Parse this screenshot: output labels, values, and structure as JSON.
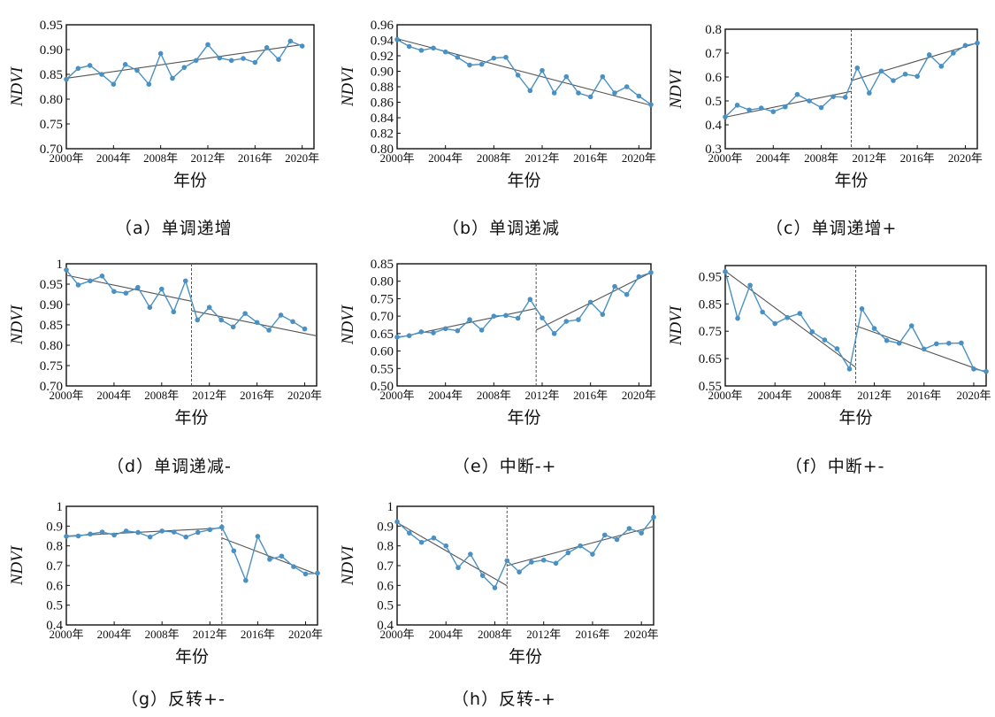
{
  "colors": {
    "series": "#4a90c2",
    "trend": "#555555",
    "axis": "#111111",
    "break": "#555555"
  },
  "chart_data": [
    {
      "type": "line",
      "caption": "（a）单调递增",
      "xlabel": "年份",
      "ylabel": "NDVI",
      "xticks": [
        "2000年",
        "2004年",
        "2008年",
        "2012年",
        "2016年",
        "2020年"
      ],
      "yticks": [
        "0.70",
        "0.75",
        "0.80",
        "0.85",
        "0.90",
        "0.95"
      ],
      "ylim": [
        0.7,
        0.95
      ],
      "series": [
        {
          "x": [
            2000,
            2001,
            2002,
            2003,
            2004,
            2005,
            2006,
            2007,
            2008,
            2009,
            2010,
            2011,
            2012,
            2013,
            2014,
            2015,
            2016,
            2017,
            2018,
            2019,
            2020
          ],
          "values": [
            0.84,
            0.862,
            0.868,
            0.85,
            0.83,
            0.87,
            0.858,
            0.83,
            0.892,
            0.842,
            0.864,
            0.878,
            0.91,
            0.883,
            0.878,
            0.882,
            0.874,
            0.904,
            0.88,
            0.917,
            0.907
          ]
        }
      ],
      "trend": [
        {
          "x": [
            2000,
            2020
          ],
          "y": [
            0.842,
            0.91
          ]
        }
      ]
    },
    {
      "type": "line",
      "caption": "（b）单调递减",
      "xlabel": "年份",
      "ylabel": "NDVI",
      "xticks": [
        "2000年",
        "2004年",
        "2008年",
        "2012年",
        "2016年",
        "2020年"
      ],
      "yticks": [
        "0.80",
        "0.82",
        "0.84",
        "0.86",
        "0.88",
        "0.90",
        "0.92",
        "0.94",
        "0.96"
      ],
      "ylim": [
        0.8,
        0.96
      ],
      "series": [
        {
          "x": [
            2000,
            2001,
            2002,
            2003,
            2004,
            2005,
            2006,
            2007,
            2008,
            2009,
            2010,
            2011,
            2012,
            2013,
            2014,
            2015,
            2016,
            2017,
            2018,
            2019,
            2020,
            2021
          ],
          "values": [
            0.941,
            0.932,
            0.927,
            0.93,
            0.925,
            0.918,
            0.908,
            0.909,
            0.917,
            0.918,
            0.895,
            0.875,
            0.901,
            0.872,
            0.893,
            0.872,
            0.867,
            0.893,
            0.872,
            0.88,
            0.868,
            0.857
          ]
        }
      ],
      "trend": [
        {
          "x": [
            2000,
            2021
          ],
          "y": [
            0.942,
            0.856
          ]
        }
      ]
    },
    {
      "type": "line",
      "caption": "（c）单调递增+",
      "xlabel": "年份",
      "ylabel": "NDVI",
      "xticks": [
        "2000年",
        "2004年",
        "2008年",
        "2012年",
        "2016年",
        "2020年"
      ],
      "yticks": [
        "0.3",
        "0.4",
        "0.5",
        "0.6",
        "0.7",
        "0.8"
      ],
      "ylim": [
        0.3,
        0.8
      ],
      "breakpoint": 2010.5,
      "series": [
        {
          "x": [
            2000,
            2001,
            2002,
            2003,
            2004,
            2005,
            2006,
            2007,
            2008,
            2009,
            2010,
            2011,
            2012,
            2013,
            2014,
            2015,
            2016,
            2017,
            2018,
            2019,
            2020,
            2021
          ],
          "values": [
            0.433,
            0.482,
            0.462,
            0.47,
            0.455,
            0.475,
            0.527,
            0.5,
            0.472,
            0.518,
            0.515,
            0.638,
            0.533,
            0.625,
            0.585,
            0.612,
            0.603,
            0.693,
            0.645,
            0.7,
            0.732,
            0.742
          ]
        }
      ],
      "trend": [
        {
          "x": [
            2000,
            2010.5
          ],
          "y": [
            0.432,
            0.54
          ]
        },
        {
          "x": [
            2010.5,
            2021
          ],
          "y": [
            0.585,
            0.742
          ]
        }
      ]
    },
    {
      "type": "line",
      "caption": "（d）单调递减-",
      "xlabel": "年份",
      "ylabel": "NDVI",
      "xticks": [
        "2000年",
        "2004年",
        "2008年",
        "2012年",
        "2016年",
        "2020年"
      ],
      "yticks": [
        "0.70",
        "0.75",
        "0.80",
        "0.85",
        "0.90",
        "0.95",
        "1"
      ],
      "ylim": [
        0.7,
        1.0
      ],
      "breakpoint": 2010.5,
      "series": [
        {
          "x": [
            2000,
            2001,
            2002,
            2003,
            2004,
            2005,
            2006,
            2007,
            2008,
            2009,
            2010,
            2011,
            2012,
            2013,
            2014,
            2015,
            2016,
            2017,
            2018,
            2019,
            2020
          ],
          "values": [
            0.985,
            0.948,
            0.958,
            0.97,
            0.932,
            0.928,
            0.942,
            0.893,
            0.938,
            0.882,
            0.958,
            0.862,
            0.893,
            0.862,
            0.845,
            0.878,
            0.856,
            0.837,
            0.874,
            0.858,
            0.84
          ]
        }
      ],
      "trend": [
        {
          "x": [
            2000,
            2010.5
          ],
          "y": [
            0.972,
            0.908
          ]
        },
        {
          "x": [
            2010.5,
            2021
          ],
          "y": [
            0.885,
            0.823
          ]
        }
      ]
    },
    {
      "type": "line",
      "caption": "（e）中断-+",
      "xlabel": "年份",
      "ylabel": "NDVI",
      "xticks": [
        "2000年",
        "2004年",
        "2008年",
        "2012年",
        "2016年",
        "2020年"
      ],
      "yticks": [
        "0.50",
        "0.55",
        "0.60",
        "0.65",
        "0.70",
        "0.75",
        "0.80",
        "0.85"
      ],
      "ylim": [
        0.5,
        0.85
      ],
      "breakpoint": 2011.5,
      "series": [
        {
          "x": [
            2000,
            2001,
            2002,
            2003,
            2004,
            2005,
            2006,
            2007,
            2008,
            2009,
            2010,
            2011,
            2012,
            2013,
            2014,
            2015,
            2016,
            2017,
            2018,
            2019,
            2020,
            2021
          ],
          "values": [
            0.64,
            0.644,
            0.655,
            0.652,
            0.664,
            0.658,
            0.69,
            0.66,
            0.7,
            0.702,
            0.694,
            0.748,
            0.695,
            0.65,
            0.685,
            0.69,
            0.74,
            0.705,
            0.785,
            0.762,
            0.813,
            0.825
          ]
        }
      ],
      "trend": [
        {
          "x": [
            2000,
            2011.5
          ],
          "y": [
            0.638,
            0.722
          ]
        },
        {
          "x": [
            2011.5,
            2021
          ],
          "y": [
            0.66,
            0.825
          ]
        }
      ]
    },
    {
      "type": "line",
      "caption": "（f）中断+-",
      "xlabel": "年份",
      "ylabel": "NDVI",
      "xticks": [
        "2000年",
        "2004年",
        "2008年",
        "2012年",
        "2016年",
        "2020年"
      ],
      "yticks": [
        "0.55",
        "0.65",
        "0.75",
        "0.85",
        "0.95"
      ],
      "ylim": [
        0.55,
        0.99
      ],
      "breakpoint": 2010.5,
      "series": [
        {
          "x": [
            2000,
            2001,
            2002,
            2003,
            2004,
            2005,
            2006,
            2007,
            2008,
            2009,
            2010,
            2011,
            2012,
            2013,
            2014,
            2015,
            2016,
            2017,
            2018,
            2019,
            2020,
            2021
          ],
          "values": [
            0.968,
            0.797,
            0.918,
            0.82,
            0.778,
            0.8,
            0.815,
            0.748,
            0.718,
            0.686,
            0.612,
            0.832,
            0.76,
            0.716,
            0.706,
            0.77,
            0.685,
            0.704,
            0.706,
            0.707,
            0.612,
            0.603
          ]
        }
      ],
      "trend": [
        {
          "x": [
            2000,
            2010.5
          ],
          "y": [
            0.97,
            0.618
          ]
        },
        {
          "x": [
            2010.5,
            2021
          ],
          "y": [
            0.77,
            0.6
          ]
        }
      ]
    },
    {
      "type": "line",
      "caption": "（g）反转+-",
      "xlabel": "年份",
      "ylabel": "NDVI",
      "xticks": [
        "2000年",
        "2004年",
        "2008年",
        "2012年",
        "2016年",
        "2020年"
      ],
      "yticks": [
        "0.4",
        "0.5",
        "0.6",
        "0.7",
        "0.8",
        "0.9",
        "1"
      ],
      "ylim": [
        0.4,
        1.0
      ],
      "breakpoint": 2013,
      "series": [
        {
          "x": [
            2000,
            2001,
            2002,
            2003,
            2004,
            2005,
            2006,
            2007,
            2008,
            2009,
            2010,
            2011,
            2012,
            2013,
            2014,
            2015,
            2016,
            2017,
            2018,
            2019,
            2020,
            2021
          ],
          "values": [
            0.848,
            0.85,
            0.86,
            0.87,
            0.855,
            0.875,
            0.868,
            0.845,
            0.875,
            0.87,
            0.845,
            0.868,
            0.882,
            0.895,
            0.775,
            0.625,
            0.848,
            0.732,
            0.748,
            0.695,
            0.658,
            0.662
          ]
        }
      ],
      "trend": [
        {
          "x": [
            2000,
            2013
          ],
          "y": [
            0.85,
            0.89
          ]
        },
        {
          "x": [
            2013,
            2021
          ],
          "y": [
            0.84,
            0.655
          ]
        }
      ]
    },
    {
      "type": "line",
      "caption": "（h）反转-+",
      "xlabel": "年份",
      "ylabel": "NDVI",
      "xticks": [
        "2000年",
        "2004年",
        "2008年",
        "2012年",
        "2016年",
        "2020年"
      ],
      "yticks": [
        "0.4",
        "0.5",
        "0.6",
        "0.7",
        "0.8",
        "0.9",
        "1"
      ],
      "ylim": [
        0.4,
        1.0
      ],
      "breakpoint": 2009,
      "series": [
        {
          "x": [
            2000,
            2001,
            2002,
            2003,
            2004,
            2005,
            2006,
            2007,
            2008,
            2009,
            2010,
            2011,
            2012,
            2013,
            2014,
            2015,
            2016,
            2017,
            2018,
            2019,
            2020,
            2021
          ],
          "values": [
            0.922,
            0.865,
            0.818,
            0.84,
            0.8,
            0.69,
            0.758,
            0.65,
            0.588,
            0.725,
            0.668,
            0.718,
            0.728,
            0.712,
            0.765,
            0.8,
            0.758,
            0.855,
            0.832,
            0.888,
            0.865,
            0.945
          ]
        }
      ],
      "trend": [
        {
          "x": [
            2000,
            2009
          ],
          "y": [
            0.918,
            0.598
          ]
        },
        {
          "x": [
            2009,
            2021
          ],
          "y": [
            0.7,
            0.898
          ]
        }
      ]
    }
  ]
}
